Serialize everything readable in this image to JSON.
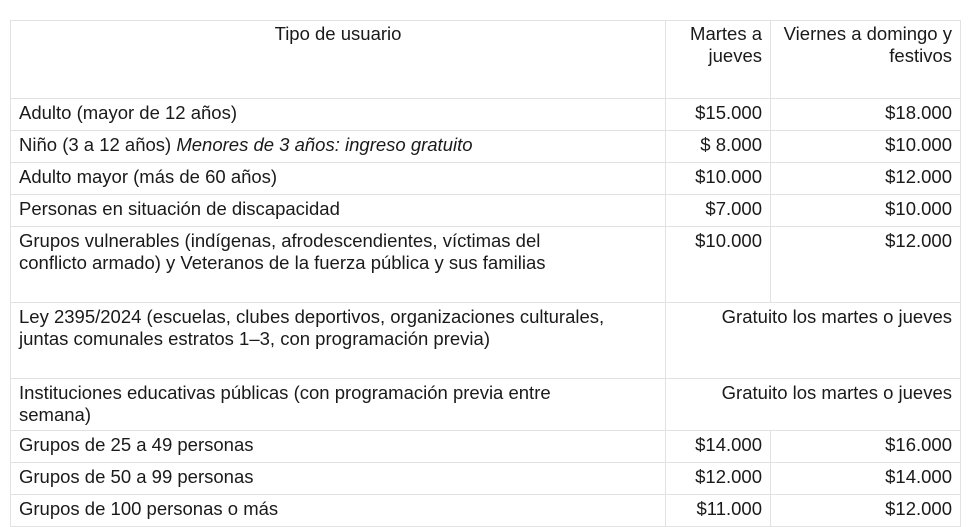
{
  "table": {
    "headers": [
      "Tipo de usuario",
      "Martes a jueves",
      "Viernes a domingo y festivos"
    ],
    "rows": [
      {
        "tipo": "Adulto (mayor de 12 años)",
        "martes_jueves": "$15.000",
        "viernes_festivos": "$18.000"
      },
      {
        "tipo": "Niño (3 a 12 años)",
        "nota": "Menores de 3 años: ingreso gratuito",
        "martes_jueves": "$ 8.000",
        "viernes_festivos": "$10.000"
      },
      {
        "tipo": "Adulto mayor (más de 60 años)",
        "martes_jueves": "$10.000",
        "viernes_festivos": "$12.000"
      },
      {
        "tipo": "Personas en situación de discapacidad",
        "martes_jueves": "$7.000",
        "viernes_festivos": "$10.000"
      },
      {
        "tipo": "Grupos vulnerables (indígenas, afrodescendientes, víctimas del conflicto armado) y Veteranos de la fuerza pública y sus familias",
        "martes_jueves": "$10.000",
        "viernes_festivos": "$12.000"
      },
      {
        "tipo": "Ley 2395/2024 (escuelas, clubes deportivos, organizaciones culturales, juntas comunales estratos 1–3, con programación previa)",
        "tarifa": "Gratuito los martes o jueves"
      },
      {
        "tipo": "Instituciones educativas públicas (con programación previa entre semana)",
        "tarifa": "Gratuito los martes o jueves"
      },
      {
        "tipo": "Grupos de 25 a 49 personas",
        "martes_jueves": "$14.000",
        "viernes_festivos": "$16.000"
      },
      {
        "tipo": "Grupos de 50 a 99 personas",
        "martes_jueves": "$12.000",
        "viernes_festivos": "$14.000"
      },
      {
        "tipo": "Grupos de 100 personas o más",
        "martes_jueves": "$11.000",
        "viernes_festivos": "$12.000"
      }
    ]
  }
}
